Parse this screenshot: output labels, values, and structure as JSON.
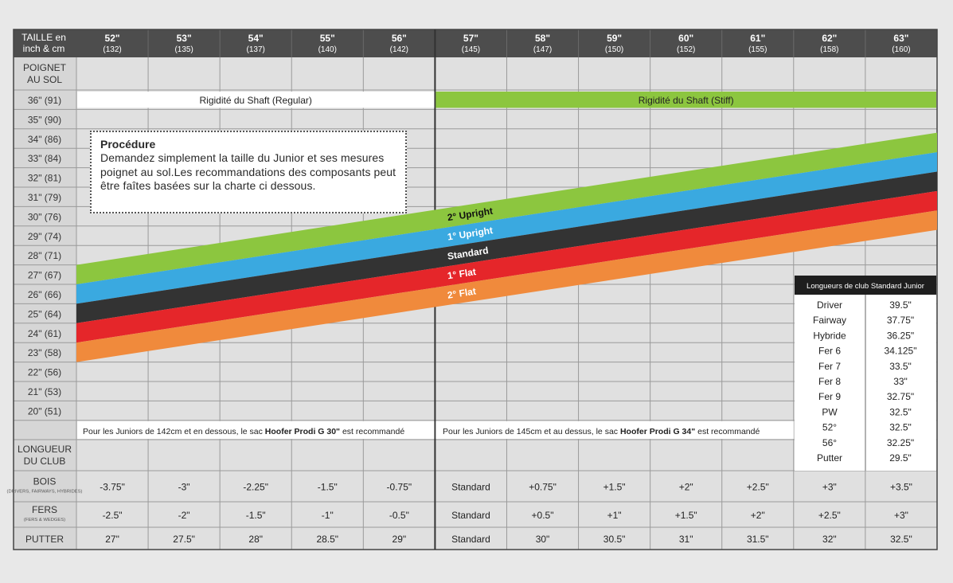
{
  "colors": {
    "header_bg": "#4d4d4d",
    "header_text": "#ffffff",
    "cell_bg": "#e0e0e0",
    "row_label_bg": "#d6d6d6",
    "stiff_green": "#8cc63f",
    "band_upright2": "#8cc63f",
    "band_upright1": "#3aa9e0",
    "band_standard": "#333333",
    "band_flat1": "#e5262a",
    "band_flat2": "#f08a3c"
  },
  "header": {
    "corner_line1": "TAILLE en",
    "corner_line2": "inch & cm",
    "heights": [
      {
        "inch": "52\"",
        "cm": "(132)"
      },
      {
        "inch": "53\"",
        "cm": "(135)"
      },
      {
        "inch": "54\"",
        "cm": "(137)"
      },
      {
        "inch": "55\"",
        "cm": "(140)"
      },
      {
        "inch": "56\"",
        "cm": "(142)"
      },
      {
        "inch": "57\"",
        "cm": "(145)"
      },
      {
        "inch": "58\"",
        "cm": "(147)"
      },
      {
        "inch": "59\"",
        "cm": "(150)"
      },
      {
        "inch": "60\"",
        "cm": "(152)"
      },
      {
        "inch": "61\"",
        "cm": "(155)"
      },
      {
        "inch": "62\"",
        "cm": "(158)"
      },
      {
        "inch": "63\"",
        "cm": "(160)"
      }
    ]
  },
  "wrist_header_line1": "POIGNET",
  "wrist_header_line2": "AU SOL",
  "wrist_rows": [
    "36\" (91)",
    "35\" (90)",
    "34\" (86)",
    "33\" (84)",
    "32\" (81)",
    "31\" (79)",
    "30\" (76)",
    "29\" (74)",
    "28\" (71)",
    "27\" (67)",
    "26\" (66)",
    "25\" (64)",
    "24\" (61)",
    "23\" (58)",
    "22\" (56)",
    "21\" (53)",
    "20\" (51)"
  ],
  "shaft_regular": "Rigidité du Shaft (Regular)",
  "shaft_stiff": "Rigidité du Shaft (Stiff)",
  "procedure": {
    "title": "Procédure",
    "body": "Demandez simplement la taille du Junior et ses mesures poignet au sol.Les recommandations des composants peut être faîtes basées sur la charte ci dessous."
  },
  "chart_data": {
    "type": "area",
    "x": [
      52,
      63
    ],
    "x_unit": "TAILLE en inch & cm",
    "y_unit": "POIGNET AU SOL",
    "series": [
      {
        "name": "2° Upright",
        "lower": [
          26.0,
          32.8
        ],
        "upper": [
          27.0,
          33.8
        ]
      },
      {
        "name": "1° Upright",
        "lower": [
          25.0,
          31.8
        ],
        "upper": [
          26.0,
          32.8
        ]
      },
      {
        "name": "Standard",
        "lower": [
          24.0,
          30.8
        ],
        "upper": [
          25.0,
          31.8
        ]
      },
      {
        "name": "1° Flat",
        "lower": [
          23.0,
          29.8
        ],
        "upper": [
          24.0,
          30.8
        ]
      },
      {
        "name": "2° Flat",
        "lower": [
          22.0,
          28.8
        ],
        "upper": [
          23.0,
          29.8
        ]
      }
    ]
  },
  "bags": {
    "left_prefix": "Pour les Juniors de 142cm et en dessous, le sac ",
    "left_bold": "Hoofer Prodi G 30\"",
    "left_suffix": " est recommandé",
    "right_prefix": "Pour les Juniors de 145cm et au dessus, le sac ",
    "right_bold": "Hoofer Prodi G 34\"",
    "right_suffix": " est recommandé"
  },
  "length_header_line1": "LONGUEUR",
  "length_header_line2": "DU CLUB",
  "clubs": [
    {
      "label": "BOIS",
      "sub": "(DRIVERS, FAIRWAYS, HYBRIDES)",
      "values": [
        "-3.75\"",
        "-3\"",
        "-2.25\"",
        "-1.5\"",
        "-0.75\"",
        "Standard",
        "+0.75\"",
        "+1.5\"",
        "+2\"",
        "+2.5\"",
        "+3\"",
        "+3.5\""
      ]
    },
    {
      "label": "FERS",
      "sub": "(FERS & WEDGES)",
      "values": [
        "-2.5\"",
        "-2\"",
        "-1.5\"",
        "-1\"",
        "-0.5\"",
        "Standard",
        "+0.5\"",
        "+1\"",
        "+1.5\"",
        "+2\"",
        "+2.5\"",
        "+3\""
      ]
    },
    {
      "label": "PUTTER",
      "sub": "",
      "values": [
        "27\"",
        "27.5\"",
        "28\"",
        "28.5\"",
        "29\"",
        "Standard",
        "30\"",
        "30.5\"",
        "31\"",
        "31.5\"",
        "32\"",
        "32.5\""
      ]
    }
  ],
  "std_lengths": {
    "title": "Longueurs de club Standard Junior",
    "rows": [
      {
        "club": "Driver",
        "length": "39.5\""
      },
      {
        "club": "Fairway",
        "length": "37.75\""
      },
      {
        "club": "Hybride",
        "length": "36.25\""
      },
      {
        "club": "Fer 6",
        "length": "34.125\""
      },
      {
        "club": "Fer 7",
        "length": "33.5\""
      },
      {
        "club": "Fer 8",
        "length": "33\""
      },
      {
        "club": "Fer 9",
        "length": "32.75\""
      },
      {
        "club": "PW",
        "length": "32.5\""
      },
      {
        "club": "52°",
        "length": "32.5\""
      },
      {
        "club": "56°",
        "length": "32.25\""
      },
      {
        "club": "Putter",
        "length": "29.5\""
      }
    ]
  }
}
